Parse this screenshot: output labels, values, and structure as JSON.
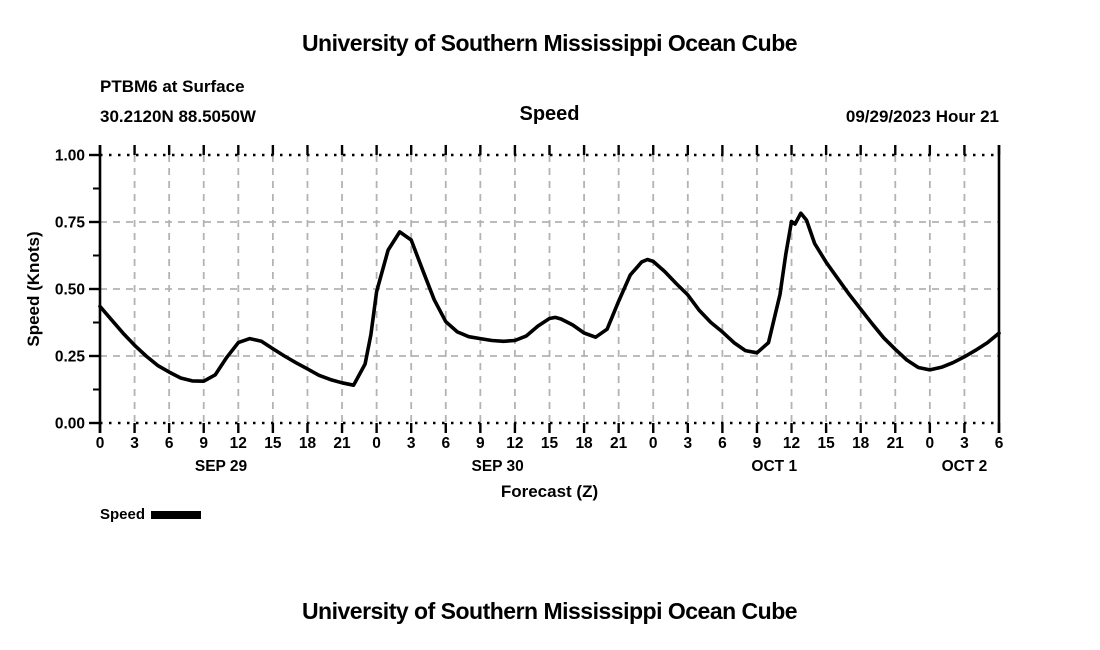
{
  "header": {
    "title": "University of Southern Mississippi Ocean Cube",
    "station": "PTBM6 at Surface",
    "coordinates": "30.2120N  88.5050W",
    "plot_title": "Speed",
    "run_time": "09/29/2023 Hour 21"
  },
  "footer": {
    "title": "University of Southern Mississippi Ocean Cube"
  },
  "legend": {
    "label": "Speed"
  },
  "chart_data": {
    "type": "line",
    "title": "Speed",
    "xlabel": "Forecast (Z)",
    "ylabel": "Speed (Knots)",
    "xlim": [
      0,
      78
    ],
    "ylim": [
      0.0,
      1.0
    ],
    "grid": "dashed",
    "legend_position": "bottom-left",
    "x_tick_hours": [
      0,
      3,
      6,
      9,
      12,
      15,
      18,
      21,
      24,
      27,
      30,
      33,
      36,
      39,
      42,
      45,
      48,
      51,
      54,
      57,
      60,
      63,
      66,
      69,
      72,
      75,
      78
    ],
    "x_tick_labels": [
      "0",
      "3",
      "6",
      "9",
      "12",
      "15",
      "18",
      "21",
      "0",
      "3",
      "6",
      "9",
      "12",
      "15",
      "18",
      "21",
      "0",
      "3",
      "6",
      "9",
      "12",
      "15",
      "18",
      "21",
      "0",
      "3",
      "6"
    ],
    "date_labels": [
      {
        "label": "SEP 29",
        "hour": 10.5
      },
      {
        "label": "SEP 30",
        "hour": 34.5
      },
      {
        "label": "OCT 1",
        "hour": 58.5
      },
      {
        "label": "OCT 2",
        "hour": 75
      }
    ],
    "y_ticks": [
      {
        "value": 0.0,
        "label": "0.00"
      },
      {
        "value": 0.25,
        "label": "0.25"
      },
      {
        "value": 0.5,
        "label": "0.50"
      },
      {
        "value": 0.75,
        "label": "0.75"
      },
      {
        "value": 1.0,
        "label": "1.00"
      }
    ],
    "y_minor_tick_step": 0.125,
    "colors": {
      "line": "#000000",
      "grid": "#b3b3b3",
      "boundary_dots": "#000000",
      "text": "#000000",
      "background": "#ffffff"
    },
    "series": [
      {
        "name": "Speed",
        "units": "Knots",
        "points": [
          [
            0,
            0.435
          ],
          [
            1,
            0.385
          ],
          [
            2,
            0.335
          ],
          [
            3,
            0.29
          ],
          [
            4,
            0.25
          ],
          [
            5,
            0.215
          ],
          [
            6,
            0.19
          ],
          [
            7,
            0.168
          ],
          [
            8,
            0.157
          ],
          [
            9,
            0.156
          ],
          [
            10,
            0.18
          ],
          [
            11,
            0.245
          ],
          [
            12,
            0.3
          ],
          [
            13,
            0.315
          ],
          [
            14,
            0.305
          ],
          [
            15,
            0.277
          ],
          [
            16,
            0.25
          ],
          [
            17,
            0.225
          ],
          [
            18,
            0.202
          ],
          [
            19,
            0.178
          ],
          [
            20,
            0.162
          ],
          [
            21,
            0.15
          ],
          [
            22,
            0.141
          ],
          [
            23,
            0.22
          ],
          [
            23.5,
            0.33
          ],
          [
            24,
            0.49
          ],
          [
            25,
            0.645
          ],
          [
            26,
            0.713
          ],
          [
            27,
            0.683
          ],
          [
            28,
            0.57
          ],
          [
            29,
            0.46
          ],
          [
            30,
            0.378
          ],
          [
            31,
            0.34
          ],
          [
            32,
            0.322
          ],
          [
            33,
            0.315
          ],
          [
            34,
            0.308
          ],
          [
            35,
            0.305
          ],
          [
            36,
            0.308
          ],
          [
            37,
            0.325
          ],
          [
            38,
            0.362
          ],
          [
            39,
            0.39
          ],
          [
            39.5,
            0.394
          ],
          [
            40,
            0.388
          ],
          [
            41,
            0.366
          ],
          [
            42,
            0.336
          ],
          [
            43,
            0.32
          ],
          [
            44,
            0.35
          ],
          [
            45,
            0.455
          ],
          [
            46,
            0.552
          ],
          [
            47,
            0.601
          ],
          [
            47.5,
            0.61
          ],
          [
            48,
            0.603
          ],
          [
            49,
            0.565
          ],
          [
            50,
            0.52
          ],
          [
            51,
            0.478
          ],
          [
            52,
            0.42
          ],
          [
            53,
            0.375
          ],
          [
            54,
            0.34
          ],
          [
            55,
            0.3
          ],
          [
            56,
            0.27
          ],
          [
            57,
            0.262
          ],
          [
            58,
            0.3
          ],
          [
            59,
            0.48
          ],
          [
            59.5,
            0.63
          ],
          [
            60,
            0.752
          ],
          [
            60.3,
            0.742
          ],
          [
            60.8,
            0.783
          ],
          [
            61.3,
            0.757
          ],
          [
            62,
            0.67
          ],
          [
            63,
            0.6
          ],
          [
            64,
            0.54
          ],
          [
            65,
            0.48
          ],
          [
            66,
            0.425
          ],
          [
            67,
            0.37
          ],
          [
            68,
            0.318
          ],
          [
            69,
            0.275
          ],
          [
            70,
            0.235
          ],
          [
            71,
            0.207
          ],
          [
            72,
            0.198
          ],
          [
            73,
            0.208
          ],
          [
            74,
            0.225
          ],
          [
            75,
            0.247
          ],
          [
            76,
            0.272
          ],
          [
            77,
            0.3
          ],
          [
            78,
            0.335
          ]
        ]
      }
    ]
  }
}
